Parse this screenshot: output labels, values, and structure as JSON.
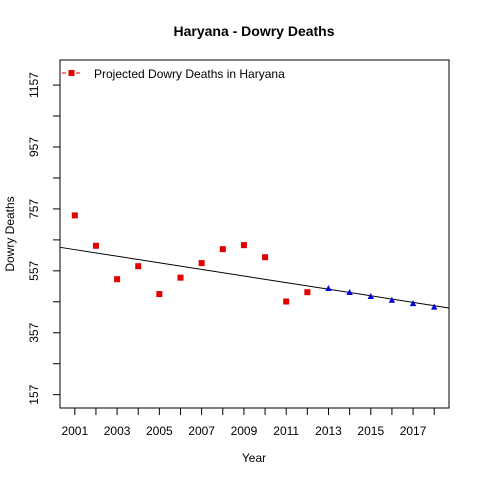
{
  "chart_data": {
    "type": "scatter",
    "title": "Haryana  -  Dowry Deaths",
    "xlabel": "Year",
    "ylabel": "Dowry Deaths",
    "xlim": [
      2000.3,
      2018.7
    ],
    "ylim": [
      114,
      1238
    ],
    "x_ticks": [
      2001,
      2003,
      2005,
      2007,
      2009,
      2011,
      2013,
      2015,
      2017
    ],
    "y_ticks": [
      157,
      357,
      557,
      757,
      957,
      1157
    ],
    "grid": false,
    "legend": {
      "position": "top-left",
      "entries": [
        "Projected  Dowry Deaths  in  Haryana"
      ]
    },
    "series": [
      {
        "name": "Projected  Dowry Deaths  in  Haryana",
        "marker": "square",
        "color": "#e00000",
        "x": [
          2001,
          2002,
          2003,
          2004,
          2005,
          2006,
          2007,
          2008,
          2009,
          2010,
          2011,
          2012
        ],
        "y": [
          736,
          638,
          530,
          572,
          482,
          535,
          582,
          627,
          640,
          601,
          458,
          488
        ]
      },
      {
        "marker": "triangle",
        "color": "#0000dd",
        "x": [
          2013,
          2014,
          2015,
          2016,
          2017,
          2018
        ],
        "y": [
          500,
          487,
          474,
          462,
          451,
          440
        ]
      }
    ],
    "trend_line": {
      "color": "#000000",
      "x": [
        2000.3,
        2018.7
      ],
      "y": [
        633,
        437
      ]
    }
  }
}
